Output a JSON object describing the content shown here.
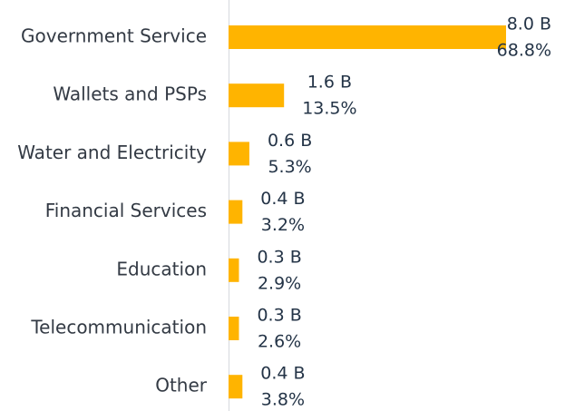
{
  "chart_data": {
    "type": "barh",
    "categories": [
      "Government Service",
      "Wallets and PSPs",
      "Water and Electricity",
      "Financial Services",
      "Education",
      "Telecommunication",
      "Other"
    ],
    "values": [
      8.0,
      1.6,
      0.6,
      0.4,
      0.3,
      0.3,
      0.4
    ],
    "value_labels": [
      "8.0 B",
      "1.6 B",
      "0.6 B",
      "0.4 B",
      "0.3 B",
      "0.3 B",
      "0.4 B"
    ],
    "shares": [
      68.8,
      13.5,
      5.3,
      3.2,
      2.9,
      2.6,
      3.8
    ],
    "share_labels": [
      "68.8%",
      "13.5%",
      "5.3%",
      "3.2%",
      "2.9%",
      "2.6%",
      "3.8%"
    ],
    "color": "#ffb400",
    "xlim": [
      0,
      8.0
    ]
  }
}
